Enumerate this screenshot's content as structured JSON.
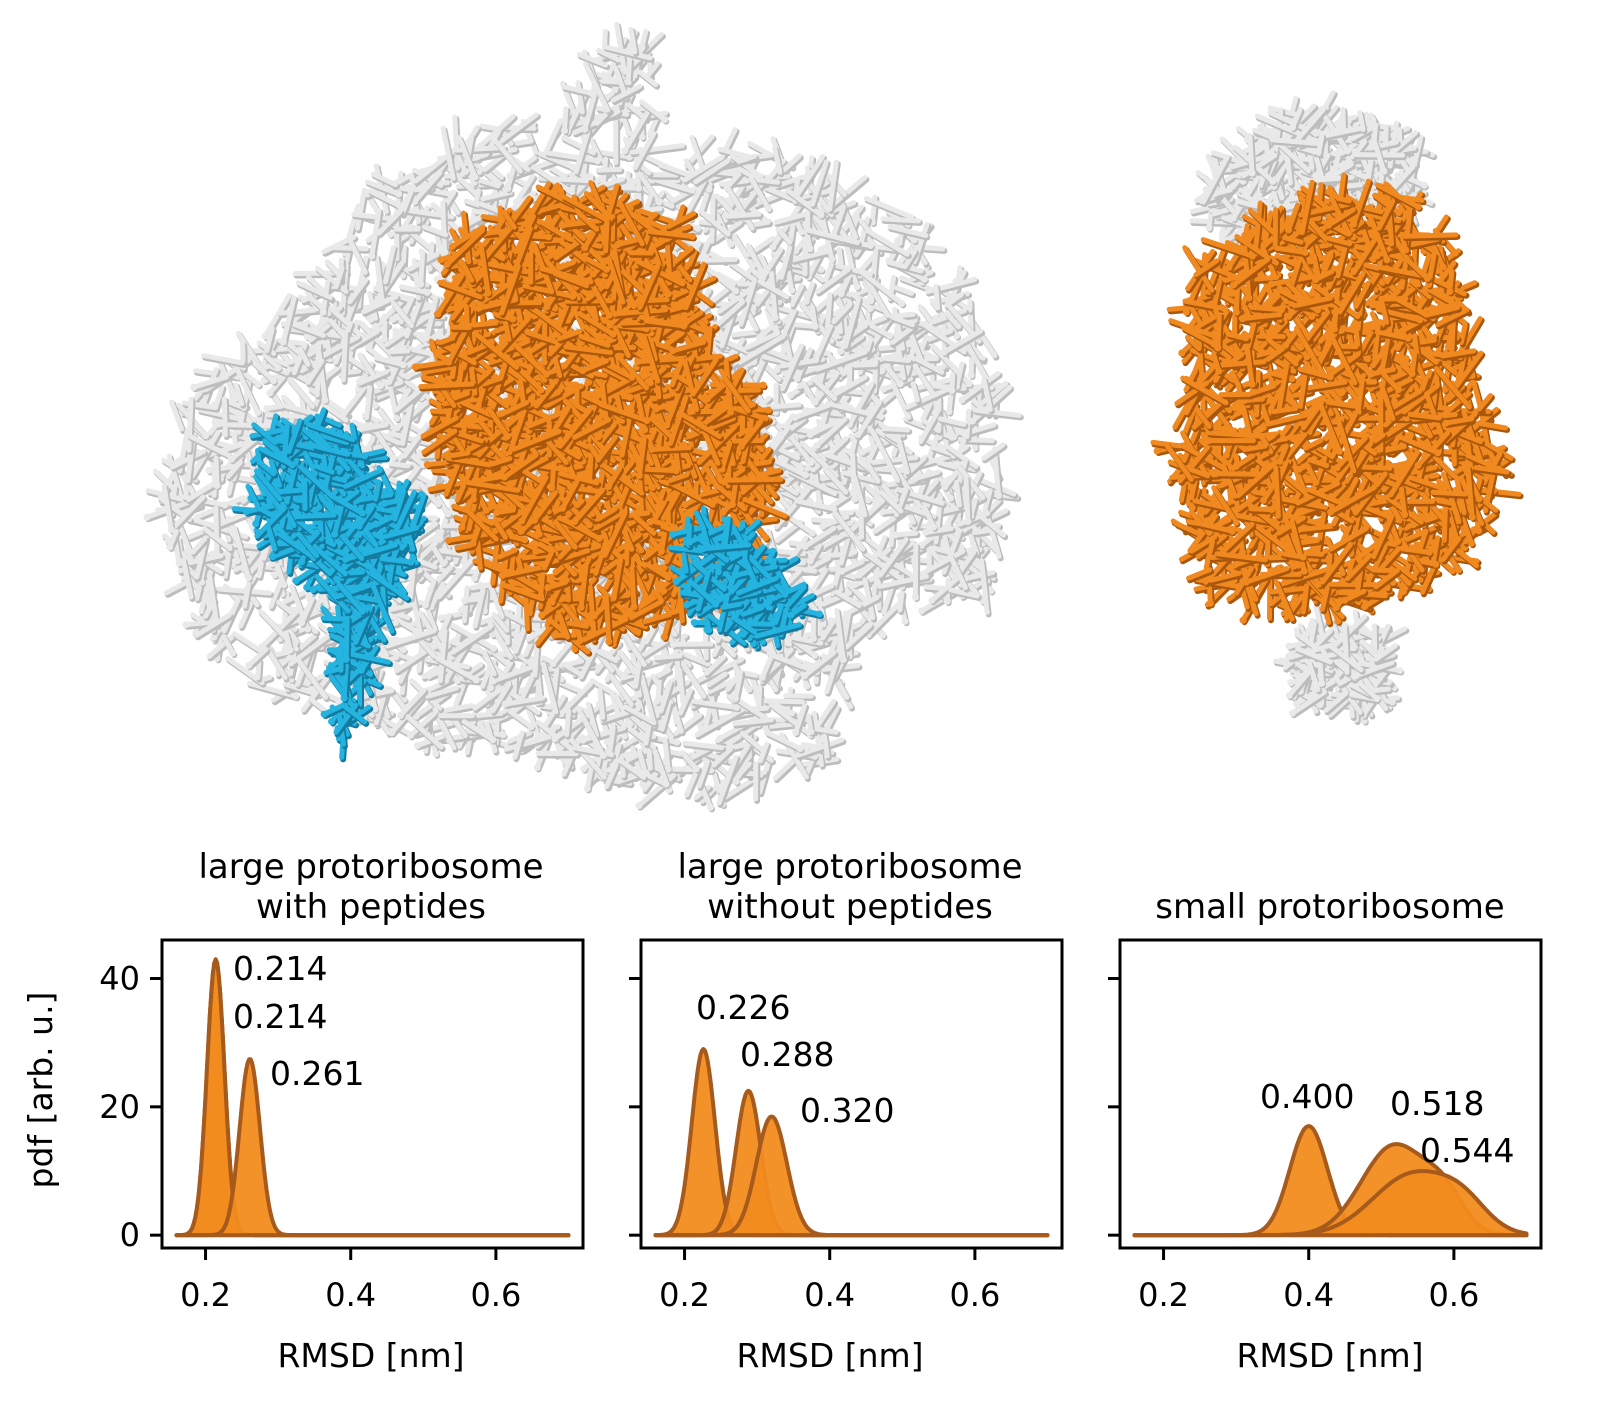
{
  "colors": {
    "fill": "#f28c1e",
    "edge": "#a65a1c",
    "white_struct": "#e9e9e9",
    "white_shadow": "#c4c4c4",
    "orange_struct": "#f08a20",
    "orange_shadow": "#b8600f",
    "blue_struct": "#25b4e0",
    "blue_shadow": "#1a88ad",
    "axis": "#000000"
  },
  "images": {
    "large_structure_icon": "large-protoribosome-molecular-render",
    "small_structure_icon": "small-protoribosome-molecular-render"
  },
  "shared_axes": {
    "ylabel": "pdf [arb. u.]",
    "xlabel": "RMSD [nm]",
    "xlim": [
      0.14,
      0.72
    ],
    "ylim": [
      -2,
      46
    ],
    "xticks": [
      0.2,
      0.4,
      0.6
    ],
    "xtick_labels": [
      "0.2",
      "0.4",
      "0.6"
    ],
    "yticks": [
      0,
      20,
      40
    ],
    "ytick_labels": [
      "0",
      "20",
      "40"
    ]
  },
  "chart_data": [
    {
      "type": "area",
      "title": "large protoribosome\nwith peptides",
      "title_lines": [
        "large protoribosome",
        "with peptides"
      ],
      "xlabel": "RMSD [nm]",
      "ylabel": "pdf [arb. u.]",
      "series": [
        {
          "peak_x": 0.214,
          "peak_y": 43,
          "width": 0.012
        },
        {
          "peak_x": 0.214,
          "peak_y": 43,
          "width": 0.012
        },
        {
          "peak_x": 0.261,
          "peak_y": 27.5,
          "width": 0.014
        }
      ],
      "annotations": [
        "0.214",
        "0.214",
        "0.261"
      ]
    },
    {
      "type": "area",
      "title": "large protoribosome\nwithout peptides",
      "title_lines": [
        "large protoribosome",
        "without peptides"
      ],
      "xlabel": "RMSD [nm]",
      "series": [
        {
          "peak_x": 0.226,
          "peak_y": 29,
          "width": 0.016
        },
        {
          "peak_x": 0.288,
          "peak_y": 22.5,
          "width": 0.017
        },
        {
          "peak_x": 0.32,
          "peak_y": 18.5,
          "width": 0.021
        }
      ],
      "annotations": [
        "0.226",
        "0.288",
        "0.320"
      ]
    },
    {
      "type": "area",
      "title": "small protoribosome",
      "title_lines": [
        "small protoribosome"
      ],
      "xlabel": "RMSD [nm]",
      "series": [
        {
          "peak_x": 0.4,
          "peak_y": 17,
          "width": 0.026
        },
        {
          "peak_x": 0.518,
          "peak_y": 14,
          "width": 0.045
        },
        {
          "peak_x": 0.544,
          "peak_y": 9.5,
          "width": 0.055
        }
      ],
      "annotations": [
        "0.400",
        "0.518",
        "0.544"
      ]
    }
  ]
}
